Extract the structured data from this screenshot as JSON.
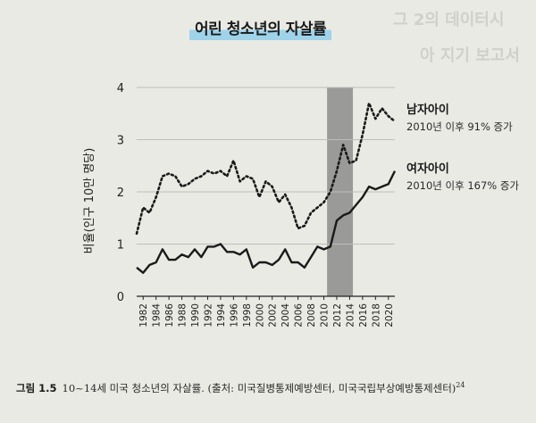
{
  "title": "어린 청소년의 자살률",
  "caption": {
    "figure_label": "그림 1.5",
    "text": "10~14세 미국 청소년의 자살률. (출처: 미국질병통제예방센터, 미국국립부상예방통제센터)",
    "footnote": "24"
  },
  "colors": {
    "series_line": "#1a1a1a",
    "highlight_band": "#8c8c8c",
    "grid": "#bdbdbd",
    "title_highlight": "#9ed3ea"
  },
  "chart_data": {
    "type": "line",
    "title": "",
    "ylabel": "비율(인구 10만 명당)",
    "xlabel": "",
    "ylim": [
      0,
      4
    ],
    "yticks": [
      "0",
      "1",
      "2",
      "3",
      "4"
    ],
    "xlim": [
      1981,
      2021
    ],
    "xticks": [
      "1982",
      "1984",
      "1986",
      "1988",
      "1990",
      "1992",
      "1994",
      "1996",
      "1998",
      "2000",
      "2002",
      "2004",
      "2006",
      "2008",
      "2010",
      "2012",
      "2014",
      "2016",
      "2018",
      "2020"
    ],
    "grid": true,
    "shaded_region": [
      2010.5,
      2014.5
    ],
    "series": [
      {
        "name": "남자아이",
        "annotation": "2010년 이후 91% 증가",
        "style": "dotted",
        "x": [
          1981,
          1982,
          1983,
          1984,
          1985,
          1986,
          1987,
          1988,
          1989,
          1990,
          1991,
          1992,
          1993,
          1994,
          1995,
          1996,
          1997,
          1998,
          1999,
          2000,
          2001,
          2002,
          2003,
          2004,
          2005,
          2006,
          2007,
          2008,
          2009,
          2010,
          2011,
          2012,
          2013,
          2014,
          2015,
          2016,
          2017,
          2018,
          2019,
          2020,
          2021
        ],
        "values": [
          1.2,
          1.7,
          1.6,
          1.9,
          2.3,
          2.35,
          2.3,
          2.1,
          2.15,
          2.25,
          2.3,
          2.4,
          2.35,
          2.4,
          2.3,
          2.6,
          2.2,
          2.3,
          2.25,
          1.9,
          2.2,
          2.1,
          1.8,
          1.95,
          1.7,
          1.3,
          1.35,
          1.6,
          1.7,
          1.8,
          2.0,
          2.4,
          2.9,
          2.55,
          2.6,
          3.1,
          3.7,
          3.4,
          3.6,
          3.45,
          3.35
        ]
      },
      {
        "name": "여자아이",
        "annotation": "2010년 이후 167% 증가",
        "style": "solid",
        "x": [
          1981,
          1982,
          1983,
          1984,
          1985,
          1986,
          1987,
          1988,
          1989,
          1990,
          1991,
          1992,
          1993,
          1994,
          1995,
          1996,
          1997,
          1998,
          1999,
          2000,
          2001,
          2002,
          2003,
          2004,
          2005,
          2006,
          2007,
          2008,
          2009,
          2010,
          2011,
          2012,
          2013,
          2014,
          2015,
          2016,
          2017,
          2018,
          2019,
          2020,
          2021
        ],
        "values": [
          0.55,
          0.45,
          0.6,
          0.65,
          0.9,
          0.7,
          0.7,
          0.8,
          0.75,
          0.9,
          0.75,
          0.95,
          0.95,
          1.0,
          0.85,
          0.85,
          0.8,
          0.9,
          0.55,
          0.65,
          0.65,
          0.6,
          0.7,
          0.9,
          0.65,
          0.65,
          0.55,
          0.75,
          0.95,
          0.9,
          0.95,
          1.45,
          1.55,
          1.6,
          1.75,
          1.9,
          2.1,
          2.05,
          2.1,
          2.15,
          2.4
        ]
      }
    ]
  }
}
